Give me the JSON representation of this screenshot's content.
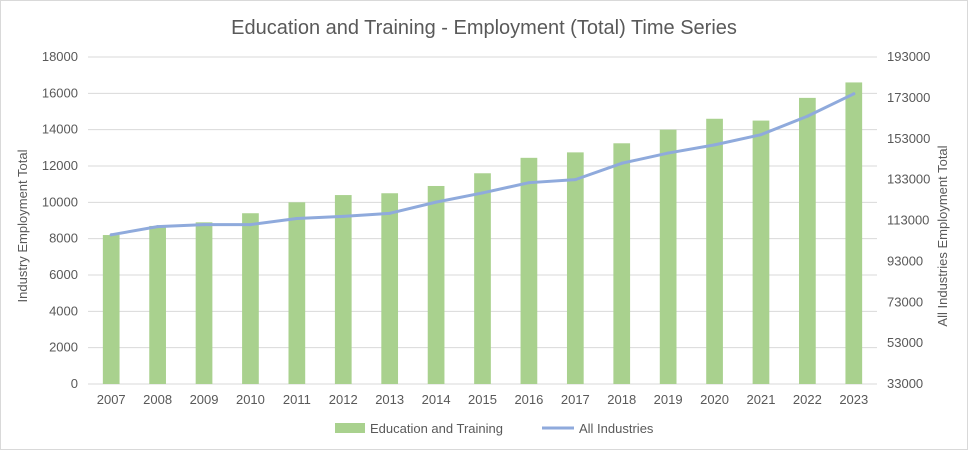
{
  "chart_data": {
    "type": "bar",
    "title": "Education and Training - Employment (Total) Time Series",
    "xlabel": "",
    "ylabel": "Industry Employment Total",
    "y2label": "All Industries Employment Total",
    "categories": [
      "2007",
      "2008",
      "2009",
      "2010",
      "2011",
      "2012",
      "2013",
      "2014",
      "2015",
      "2016",
      "2017",
      "2018",
      "2019",
      "2020",
      "2021",
      "2022",
      "2023"
    ],
    "ylim": [
      0,
      18000
    ],
    "yticks": [
      0,
      2000,
      4000,
      6000,
      8000,
      10000,
      12000,
      14000,
      16000,
      18000
    ],
    "y2lim": [
      33000,
      193000
    ],
    "y2ticks": [
      33000,
      53000,
      73000,
      93000,
      113000,
      133000,
      153000,
      173000,
      193000
    ],
    "grid": true,
    "legend_position": "bottom",
    "series": [
      {
        "name": "Education and Training",
        "type": "bar",
        "axis": "left",
        "color": "#a9d18e",
        "values": [
          8200,
          8700,
          8900,
          9400,
          10000,
          10400,
          10500,
          10900,
          11600,
          12450,
          12750,
          13250,
          14000,
          14600,
          14500,
          15750,
          16600
        ]
      },
      {
        "name": "All Industries",
        "type": "line",
        "axis": "right",
        "color": "#8faadc",
        "values": [
          106000,
          110000,
          111000,
          111000,
          114000,
          115000,
          116500,
          122000,
          126500,
          131500,
          133000,
          141000,
          146000,
          150000,
          155000,
          164000,
          175000
        ]
      }
    ]
  }
}
